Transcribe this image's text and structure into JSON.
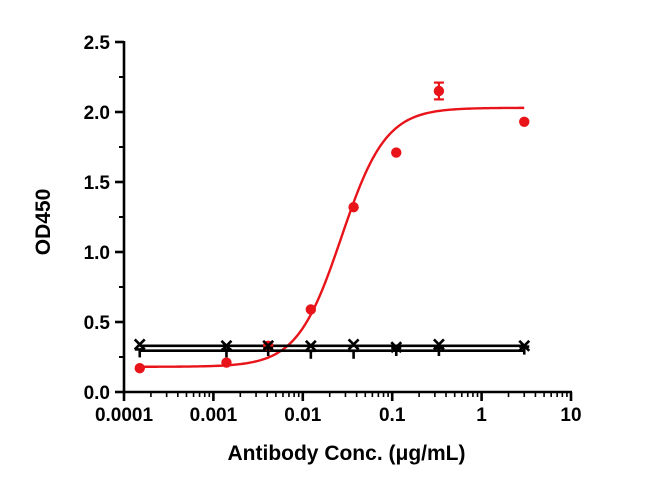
{
  "chart_data": {
    "type": "scatter",
    "title": "",
    "xlabel": "Antibody Conc. (μg/mL)",
    "ylabel": "OD450",
    "x_scale": "log",
    "xlim": [
      0.0001,
      10
    ],
    "ylim": [
      0,
      2.5
    ],
    "x_ticks": [
      0.0001,
      0.001,
      0.01,
      0.1,
      1,
      10
    ],
    "x_tick_labels": [
      "0.0001",
      "0.001",
      "0.01",
      "0.1",
      "1",
      "10"
    ],
    "y_ticks": [
      0,
      0.5,
      1,
      1.5,
      2,
      2.5
    ],
    "y_tick_labels": [
      "0.0",
      "0.5",
      "1.0",
      "1.5",
      "2.0",
      "2.5"
    ],
    "grid": false,
    "legend": "none",
    "series": [
      {
        "color": "#e8141a",
        "marker": "circle",
        "x": [
          0.00015,
          0.0014,
          0.0041,
          0.0123,
          0.037,
          0.111,
          0.333,
          3.0
        ],
        "y": [
          0.17,
          0.21,
          0.33,
          0.59,
          1.32,
          1.71,
          2.15,
          1.93
        ],
        "error": [
          0,
          0,
          0,
          0,
          0,
          0,
          0.06,
          0
        ],
        "fit": {
          "model": "4PL",
          "bottom": 0.18,
          "top": 2.03,
          "ec50": 0.027,
          "hill": 1.75
        }
      },
      {
        "color": "#000000",
        "marker": "x",
        "x": [
          0.00015,
          0.0014,
          0.0041,
          0.0123,
          0.037,
          0.111,
          0.333,
          3.0
        ],
        "y": [
          0.34,
          0.33,
          0.33,
          0.33,
          0.34,
          0.32,
          0.34,
          0.33
        ],
        "fit": {
          "model": "flat",
          "y": 0.33
        }
      },
      {
        "color": "#000000",
        "marker": "down-triangle",
        "x": [
          0.00015,
          0.0014,
          0.0041,
          0.0123,
          0.037,
          0.111,
          0.333,
          3.0
        ],
        "y": [
          0.29,
          0.29,
          0.3,
          0.28,
          0.28,
          0.3,
          0.3,
          0.31
        ],
        "fit": {
          "model": "flat",
          "y": 0.295
        }
      }
    ]
  }
}
